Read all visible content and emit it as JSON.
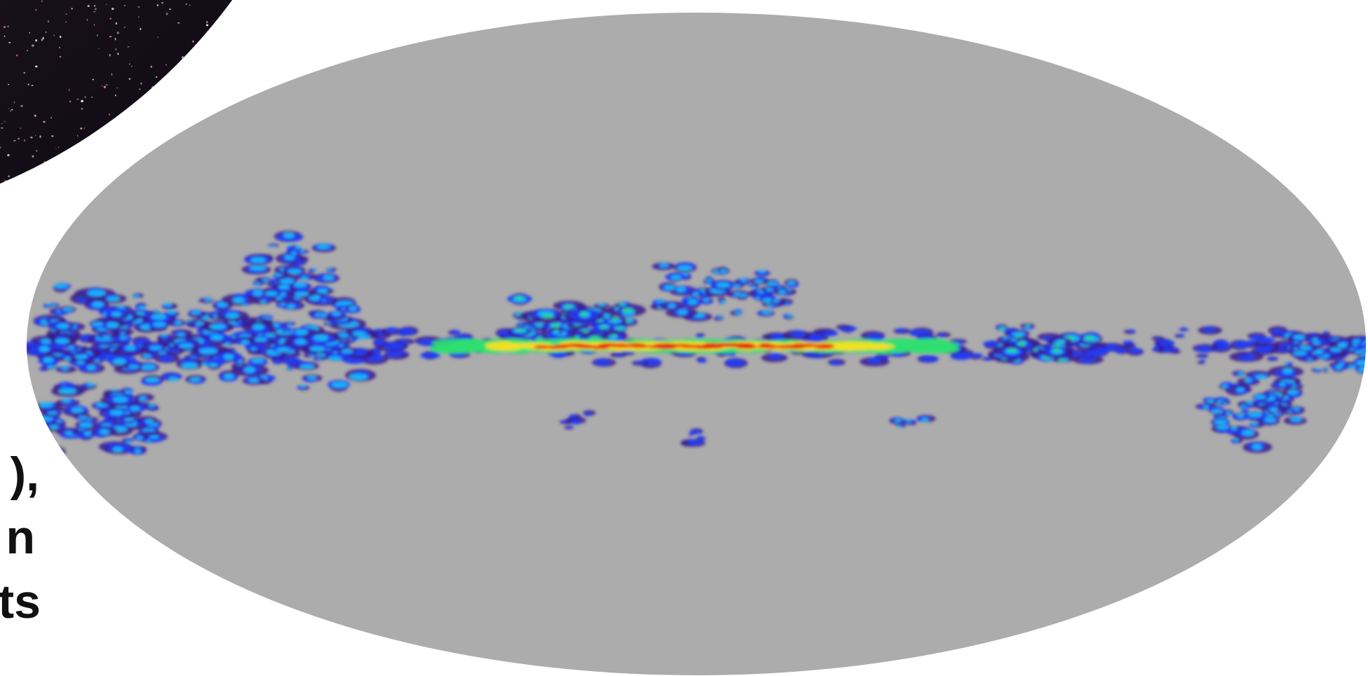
{
  "slide": {
    "text_lines": [
      "),",
      "n",
      "ts"
    ]
  }
}
